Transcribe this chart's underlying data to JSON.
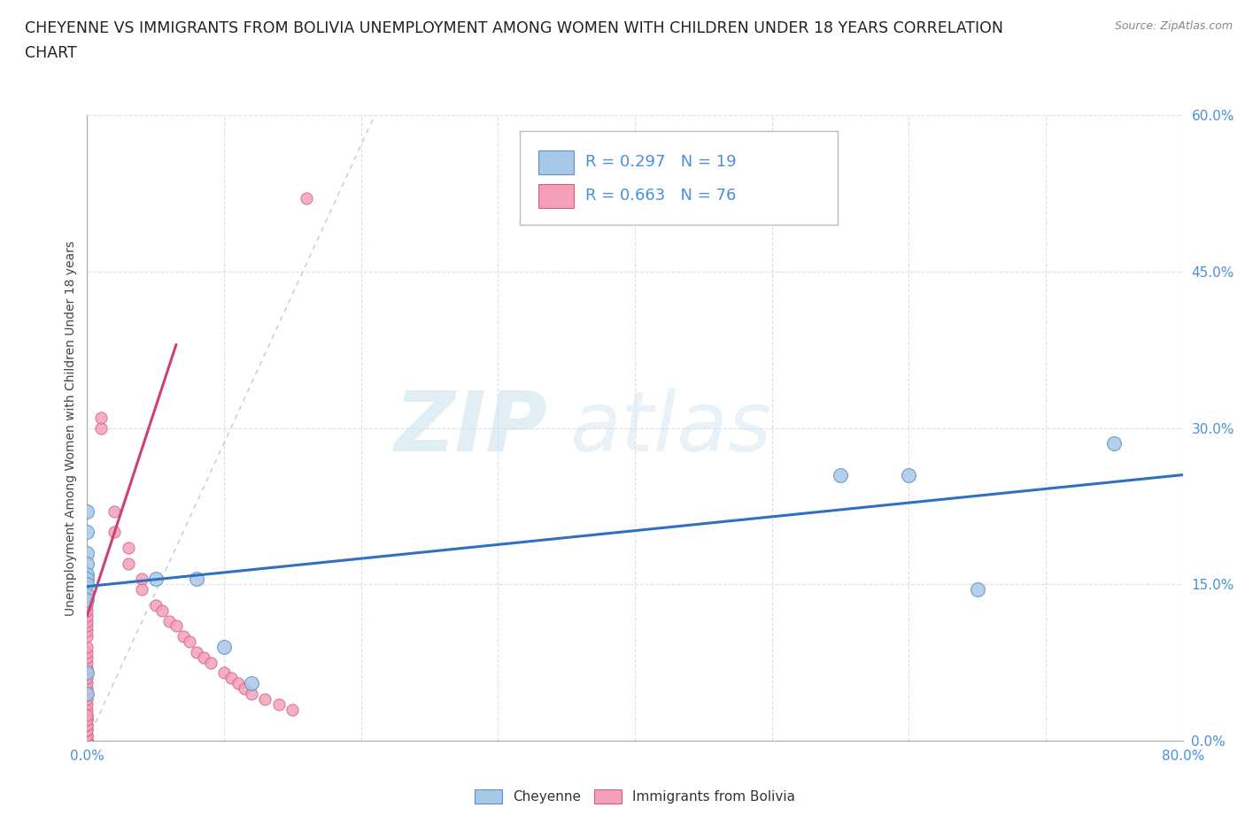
{
  "title_line1": "CHEYENNE VS IMMIGRANTS FROM BOLIVIA UNEMPLOYMENT AMONG WOMEN WITH CHILDREN UNDER 18 YEARS CORRELATION",
  "title_line2": "CHART",
  "source_text": "Source: ZipAtlas.com",
  "ylabel": "Unemployment Among Women with Children Under 18 years",
  "xlim": [
    0.0,
    0.8
  ],
  "ylim": [
    0.0,
    0.6
  ],
  "xtick_vals": [
    0.0,
    0.1,
    0.2,
    0.3,
    0.4,
    0.5,
    0.6,
    0.7,
    0.8
  ],
  "ytick_vals": [
    0.0,
    0.15,
    0.3,
    0.45,
    0.6
  ],
  "xtick_labels": [
    "0.0%",
    "",
    "",
    "",
    "",
    "",
    "",
    "",
    "80.0%"
  ],
  "ytick_labels": [
    "0.0%",
    "15.0%",
    "30.0%",
    "45.0%",
    "60.0%"
  ],
  "cheyenne_color": "#a8c8e8",
  "bolivia_color": "#f4a0b8",
  "cheyenne_edge": "#6090c0",
  "bolivia_edge": "#d06080",
  "trend_cheyenne_color": "#3070c0",
  "trend_bolivia_color": "#d04070",
  "ref_line_color": "#c8c8c8",
  "tick_color": "#4a90d9",
  "R_cheyenne": 0.297,
  "N_cheyenne": 19,
  "R_bolivia": 0.663,
  "N_bolivia": 76,
  "watermark_zip": "ZIP",
  "watermark_atlas": "atlas",
  "background_color": "#ffffff",
  "grid_color": "#d8d8d8",
  "cheyenne_points_x": [
    0.0,
    0.0,
    0.0,
    0.0,
    0.0,
    0.0,
    0.0,
    0.0,
    0.0,
    0.0,
    0.0,
    0.05,
    0.08,
    0.1,
    0.12,
    0.55,
    0.6,
    0.65,
    0.75
  ],
  "cheyenne_points_y": [
    0.22,
    0.2,
    0.18,
    0.17,
    0.16,
    0.155,
    0.15,
    0.14,
    0.135,
    0.065,
    0.045,
    0.155,
    0.155,
    0.09,
    0.055,
    0.255,
    0.255,
    0.145,
    0.285
  ],
  "bolivia_points_x": [
    0.0,
    0.0,
    0.0,
    0.0,
    0.0,
    0.0,
    0.0,
    0.0,
    0.0,
    0.0,
    0.0,
    0.0,
    0.0,
    0.0,
    0.0,
    0.0,
    0.0,
    0.0,
    0.0,
    0.0,
    0.0,
    0.0,
    0.0,
    0.0,
    0.0,
    0.0,
    0.0,
    0.0,
    0.0,
    0.0,
    0.0,
    0.0,
    0.0,
    0.0,
    0.0,
    0.0,
    0.0,
    0.0,
    0.0,
    0.0,
    0.0,
    0.0,
    0.0,
    0.0,
    0.0,
    0.0,
    0.0,
    0.0,
    0.0,
    0.0,
    0.01,
    0.01,
    0.02,
    0.02,
    0.03,
    0.03,
    0.04,
    0.04,
    0.05,
    0.055,
    0.06,
    0.065,
    0.07,
    0.075,
    0.08,
    0.085,
    0.09,
    0.1,
    0.105,
    0.11,
    0.115,
    0.12,
    0.13,
    0.14,
    0.15,
    0.16
  ],
  "bolivia_points_y": [
    0.0,
    0.0,
    0.0,
    0.0,
    0.0,
    0.0,
    0.0,
    0.0,
    0.0,
    0.0,
    0.0,
    0.0,
    0.0,
    0.0,
    0.0,
    0.0,
    0.0,
    0.005,
    0.005,
    0.01,
    0.01,
    0.015,
    0.02,
    0.02,
    0.025,
    0.03,
    0.035,
    0.04,
    0.045,
    0.05,
    0.055,
    0.06,
    0.065,
    0.07,
    0.075,
    0.08,
    0.085,
    0.09,
    0.1,
    0.105,
    0.11,
    0.115,
    0.12,
    0.125,
    0.13,
    0.135,
    0.14,
    0.015,
    0.02,
    0.025,
    0.3,
    0.31,
    0.22,
    0.2,
    0.185,
    0.17,
    0.155,
    0.145,
    0.13,
    0.125,
    0.115,
    0.11,
    0.1,
    0.095,
    0.085,
    0.08,
    0.075,
    0.065,
    0.06,
    0.055,
    0.05,
    0.045,
    0.04,
    0.035,
    0.03,
    0.52
  ],
  "cheyenne_trend_x0": 0.0,
  "cheyenne_trend_y0": 0.148,
  "cheyenne_trend_x1": 0.8,
  "cheyenne_trend_y1": 0.255,
  "bolivia_trend_x0": 0.0,
  "bolivia_trend_y0": 0.12,
  "bolivia_trend_x1": 0.065,
  "bolivia_trend_y1": 0.38,
  "ref_line_x0": 0.0,
  "ref_line_y0": 0.0,
  "ref_line_x1": 0.21,
  "ref_line_y1": 0.6
}
